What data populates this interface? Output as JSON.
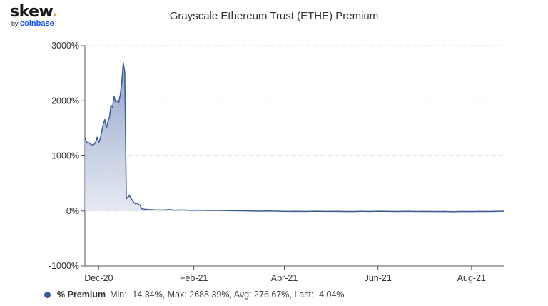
{
  "brand": {
    "name": "skew",
    "dot": ".",
    "by": "by",
    "company": "coinbase"
  },
  "legend": {
    "series_name": "% Premium",
    "stats": "Min: -14.34%, Max: 2688.39%, Avg: 276.67%, Last: -4.04%"
  },
  "colors": {
    "line": "#3d5a96",
    "fill_top": "#8a9cc5",
    "fill_bottom": "#dfe4f0",
    "grid": "#e3e3e3"
  },
  "chart_data": {
    "type": "area",
    "title": "Grayscale Ethereum Trust (ETHE) Premium",
    "xlabel": "",
    "ylabel": "",
    "ylim": [
      -1000,
      3000
    ],
    "yticks": [
      3000,
      2000,
      1000,
      0,
      -1000
    ],
    "ytick_labels": [
      "3000%",
      "2000%",
      "1000%",
      "0%",
      "-1000%"
    ],
    "xlim": [
      "2020-11-22",
      "2021-08-22"
    ],
    "xticks": [
      "2020-12-01",
      "2021-02-01",
      "2021-04-01",
      "2021-06-01",
      "2021-08-01"
    ],
    "xtick_labels": [
      "Dec-20",
      "Feb-21",
      "Apr-21",
      "Jun-21",
      "Aug-21"
    ],
    "grid": true,
    "legend_position": "bottom-left",
    "series": [
      {
        "name": "% Premium",
        "points": [
          [
            "2020-11-22",
            1320
          ],
          [
            "2020-11-23",
            1260
          ],
          [
            "2020-11-24",
            1230
          ],
          [
            "2020-11-25",
            1240
          ],
          [
            "2020-11-26",
            1200
          ],
          [
            "2020-11-27",
            1200
          ],
          [
            "2020-11-28",
            1210
          ],
          [
            "2020-11-29",
            1250
          ],
          [
            "2020-11-30",
            1340
          ],
          [
            "2020-12-01",
            1240
          ],
          [
            "2020-12-02",
            1310
          ],
          [
            "2020-12-03",
            1450
          ],
          [
            "2020-12-04",
            1580
          ],
          [
            "2020-12-05",
            1660
          ],
          [
            "2020-12-06",
            1500
          ],
          [
            "2020-12-07",
            1620
          ],
          [
            "2020-12-08",
            1700
          ],
          [
            "2020-12-09",
            1920
          ],
          [
            "2020-12-10",
            1880
          ],
          [
            "2020-12-11",
            2080
          ],
          [
            "2020-12-12",
            1980
          ],
          [
            "2020-12-13",
            2000
          ],
          [
            "2020-12-14",
            1960
          ],
          [
            "2020-12-15",
            2100
          ],
          [
            "2020-12-16",
            2320
          ],
          [
            "2020-12-17",
            2688
          ],
          [
            "2020-12-18",
            2520
          ],
          [
            "2020-12-19",
            220
          ],
          [
            "2020-12-20",
            250
          ],
          [
            "2020-12-21",
            280
          ],
          [
            "2020-12-22",
            230
          ],
          [
            "2020-12-23",
            190
          ],
          [
            "2020-12-24",
            150
          ],
          [
            "2020-12-25",
            130
          ],
          [
            "2020-12-26",
            140
          ],
          [
            "2020-12-27",
            120
          ],
          [
            "2020-12-28",
            100
          ],
          [
            "2020-12-29",
            40
          ],
          [
            "2020-12-31",
            30
          ],
          [
            "2021-01-03",
            25
          ],
          [
            "2021-01-07",
            20
          ],
          [
            "2021-01-12",
            18
          ],
          [
            "2021-01-16",
            25
          ],
          [
            "2021-01-20",
            15
          ],
          [
            "2021-01-25",
            18
          ],
          [
            "2021-01-30",
            12
          ],
          [
            "2021-02-04",
            15
          ],
          [
            "2021-02-10",
            10
          ],
          [
            "2021-02-15",
            12
          ],
          [
            "2021-02-20",
            8
          ],
          [
            "2021-02-26",
            5
          ],
          [
            "2021-03-04",
            3
          ],
          [
            "2021-03-10",
            0
          ],
          [
            "2021-03-16",
            -3
          ],
          [
            "2021-03-22",
            0
          ],
          [
            "2021-03-28",
            -5
          ],
          [
            "2021-04-03",
            -8
          ],
          [
            "2021-04-09",
            -6
          ],
          [
            "2021-04-15",
            -10
          ],
          [
            "2021-04-21",
            -5
          ],
          [
            "2021-04-27",
            -8
          ],
          [
            "2021-05-03",
            -6
          ],
          [
            "2021-05-09",
            -10
          ],
          [
            "2021-05-15",
            -12
          ],
          [
            "2021-05-21",
            -6
          ],
          [
            "2021-05-27",
            -9
          ],
          [
            "2021-06-02",
            -5
          ],
          [
            "2021-06-08",
            -8
          ],
          [
            "2021-06-14",
            -10
          ],
          [
            "2021-06-20",
            -7
          ],
          [
            "2021-06-26",
            -9
          ],
          [
            "2021-07-02",
            -8
          ],
          [
            "2021-07-08",
            -12
          ],
          [
            "2021-07-14",
            -10
          ],
          [
            "2021-07-20",
            -14
          ],
          [
            "2021-07-26",
            -9
          ],
          [
            "2021-08-01",
            -11
          ],
          [
            "2021-08-07",
            -8
          ],
          [
            "2021-08-13",
            -10
          ],
          [
            "2021-08-19",
            -6
          ],
          [
            "2021-08-22",
            -4
          ]
        ]
      }
    ]
  }
}
